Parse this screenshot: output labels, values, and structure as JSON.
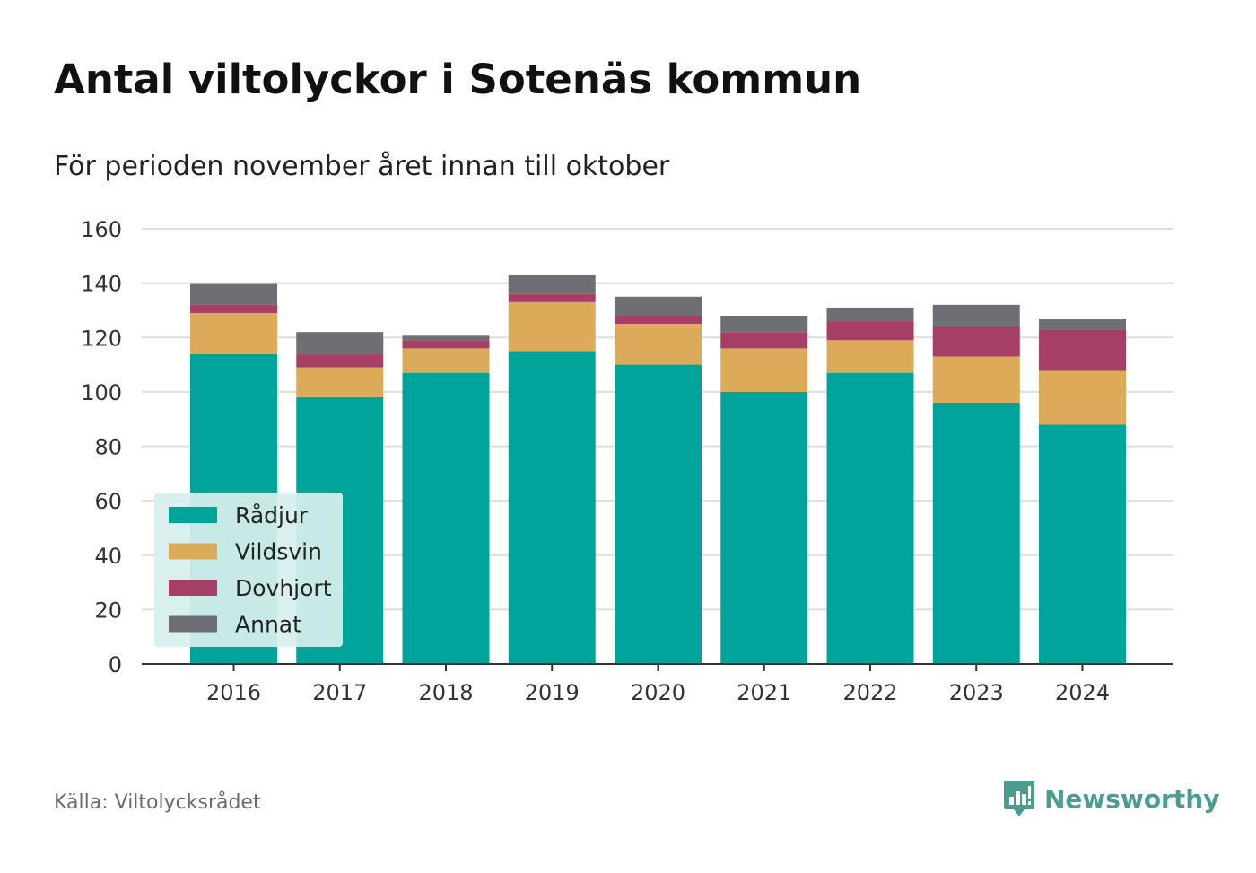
{
  "title": "Antal viltolyckor i Sotenäs kommun",
  "subtitle": "För perioden november året innan till oktober",
  "source": "Källa: Viltolycksrådet",
  "brand": {
    "name": "Newsworthy",
    "icon": "newsworthy-logo-icon",
    "color": "#4a9d8f"
  },
  "chart_data": {
    "type": "bar",
    "stacked": true,
    "categories": [
      "2016",
      "2017",
      "2018",
      "2019",
      "2020",
      "2021",
      "2022",
      "2023",
      "2024"
    ],
    "series": [
      {
        "name": "Rådjur",
        "color": "#00a49a",
        "values": [
          114,
          98,
          107,
          115,
          110,
          100,
          107,
          96,
          88
        ]
      },
      {
        "name": "Vildsvin",
        "color": "#dcab59",
        "values": [
          15,
          11,
          9,
          18,
          15,
          16,
          12,
          17,
          20
        ]
      },
      {
        "name": "Dovhjort",
        "color": "#a63f66",
        "values": [
          3,
          5,
          3,
          3,
          3,
          6,
          7,
          11,
          15
        ]
      },
      {
        "name": "Annat",
        "color": "#6e6e75",
        "values": [
          8,
          8,
          2,
          7,
          7,
          6,
          5,
          8,
          4
        ]
      }
    ],
    "yticks": [
      "0",
      "20",
      "40",
      "60",
      "80",
      "100",
      "120",
      "140",
      "160"
    ],
    "ylim": [
      0,
      160
    ],
    "xlabel": "",
    "ylabel": "",
    "grid": true,
    "legend": "bottom-left"
  }
}
